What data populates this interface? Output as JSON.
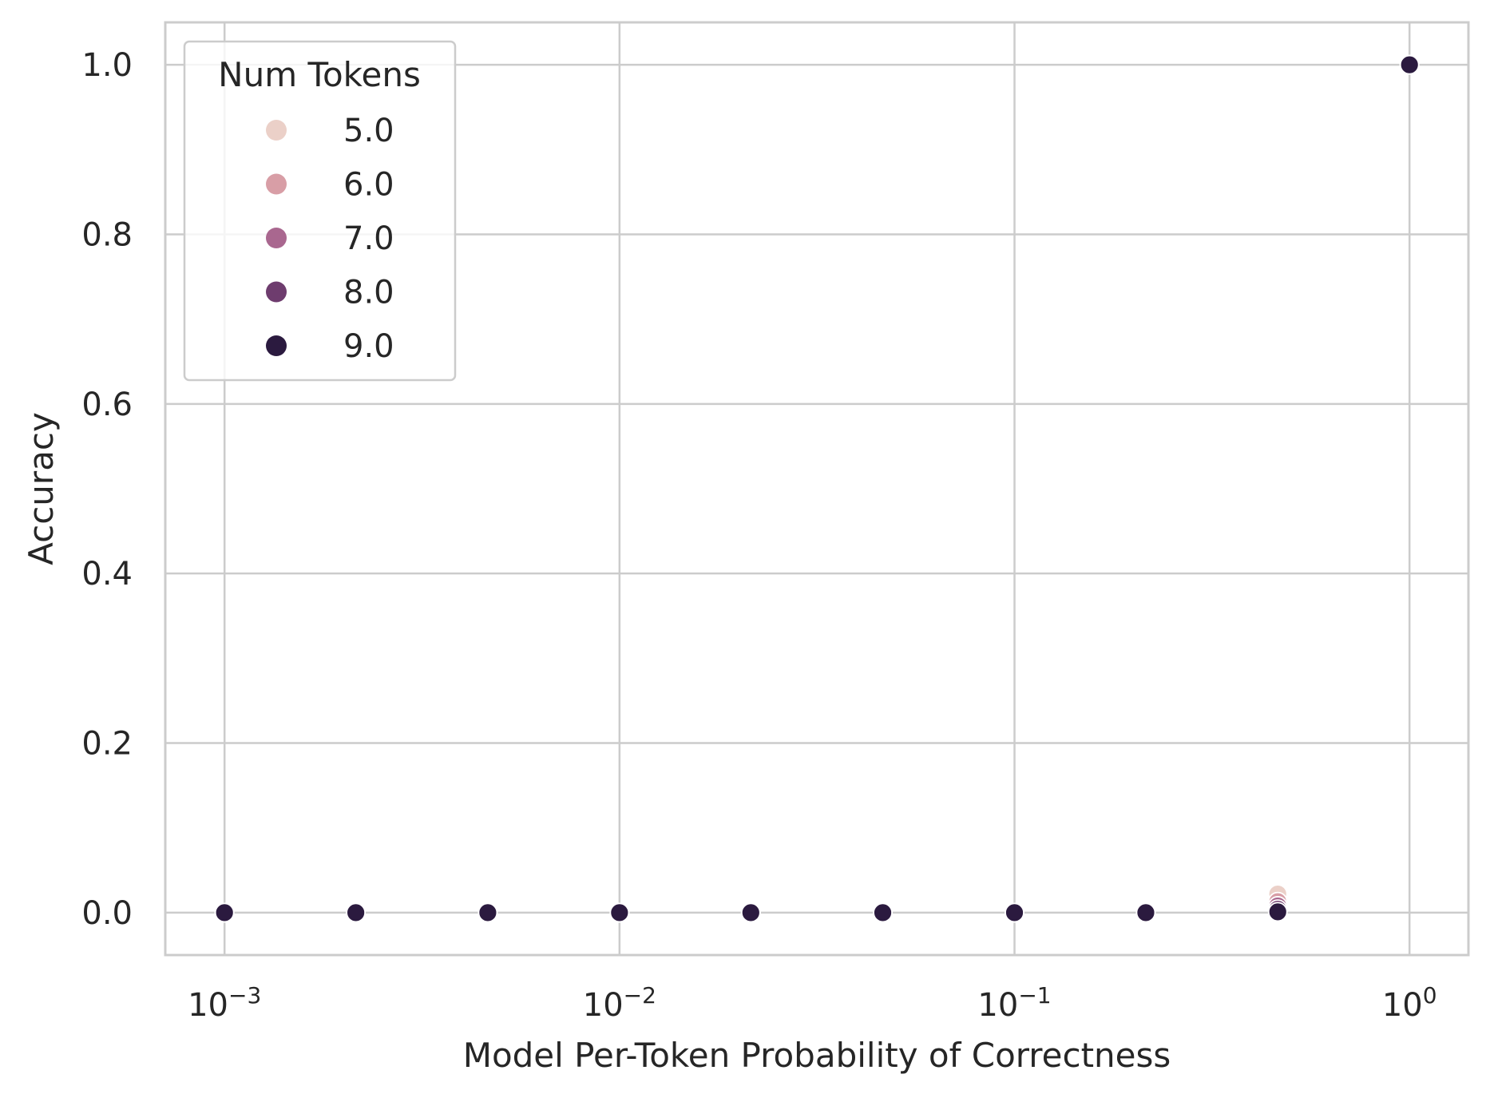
{
  "chart_data": {
    "type": "scatter",
    "xlabel": "Model Per-Token Probability of Correctness",
    "ylabel": "Accuracy",
    "x_scale": "log",
    "xlim": [
      0.000708,
      1.41
    ],
    "ylim": [
      -0.05,
      1.05
    ],
    "grid": true,
    "legend": {
      "title": "Num Tokens",
      "placement": "top-left",
      "entries": [
        {
          "label": "5.0",
          "color": "#ebd0c8"
        },
        {
          "label": "6.0",
          "color": "#d89ea6"
        },
        {
          "label": "7.0",
          "color": "#a9678f"
        },
        {
          "label": "8.0",
          "color": "#6e3c6e"
        },
        {
          "label": "9.0",
          "color": "#2b1a3f"
        }
      ]
    },
    "x_ticks": [
      {
        "value": 0.001,
        "base": "10",
        "exp": "−3"
      },
      {
        "value": 0.01,
        "base": "10",
        "exp": "−2"
      },
      {
        "value": 0.1,
        "base": "10",
        "exp": "−1"
      },
      {
        "value": 1,
        "base": "10",
        "exp": "0"
      }
    ],
    "y_ticks": [
      {
        "value": 0.0,
        "label": "0.0"
      },
      {
        "value": 0.2,
        "label": "0.2"
      },
      {
        "value": 0.4,
        "label": "0.4"
      },
      {
        "value": 0.6,
        "label": "0.6"
      },
      {
        "value": 0.8,
        "label": "0.8"
      },
      {
        "value": 1.0,
        "label": "1.0"
      }
    ],
    "series": [
      {
        "name": "5.0",
        "color": "#ebd0c8",
        "x": [
          0.001,
          0.00215,
          0.00464,
          0.01,
          0.0215,
          0.0464,
          0.1,
          0.215,
          0.464,
          1.0
        ],
        "y": [
          0.0,
          0.0,
          0.0,
          0.0,
          0.0,
          0.0,
          0.0,
          0.0,
          0.022,
          1.0
        ]
      },
      {
        "name": "6.0",
        "color": "#d89ea6",
        "x": [
          0.001,
          0.00215,
          0.00464,
          0.01,
          0.0215,
          0.0464,
          0.1,
          0.215,
          0.464,
          1.0
        ],
        "y": [
          0.0,
          0.0,
          0.0,
          0.0,
          0.0,
          0.0,
          0.0,
          0.0,
          0.013,
          1.0
        ]
      },
      {
        "name": "7.0",
        "color": "#a9678f",
        "x": [
          0.001,
          0.00215,
          0.00464,
          0.01,
          0.0215,
          0.0464,
          0.1,
          0.215,
          0.464,
          1.0
        ],
        "y": [
          0.0,
          0.0,
          0.0,
          0.0,
          0.0,
          0.0,
          0.0,
          0.0,
          0.008,
          1.0
        ]
      },
      {
        "name": "8.0",
        "color": "#6e3c6e",
        "x": [
          0.001,
          0.00215,
          0.00464,
          0.01,
          0.0215,
          0.0464,
          0.1,
          0.215,
          0.464,
          1.0
        ],
        "y": [
          0.0,
          0.0,
          0.0,
          0.0,
          0.0,
          0.0,
          0.0,
          0.0,
          0.004,
          1.0
        ]
      },
      {
        "name": "9.0",
        "color": "#2b1a3f",
        "x": [
          0.001,
          0.00215,
          0.00464,
          0.01,
          0.0215,
          0.0464,
          0.1,
          0.215,
          0.464,
          1.0
        ],
        "y": [
          0.0,
          0.0,
          0.0,
          0.0,
          0.0,
          0.0,
          0.0,
          0.0,
          0.001,
          1.0
        ]
      }
    ]
  }
}
